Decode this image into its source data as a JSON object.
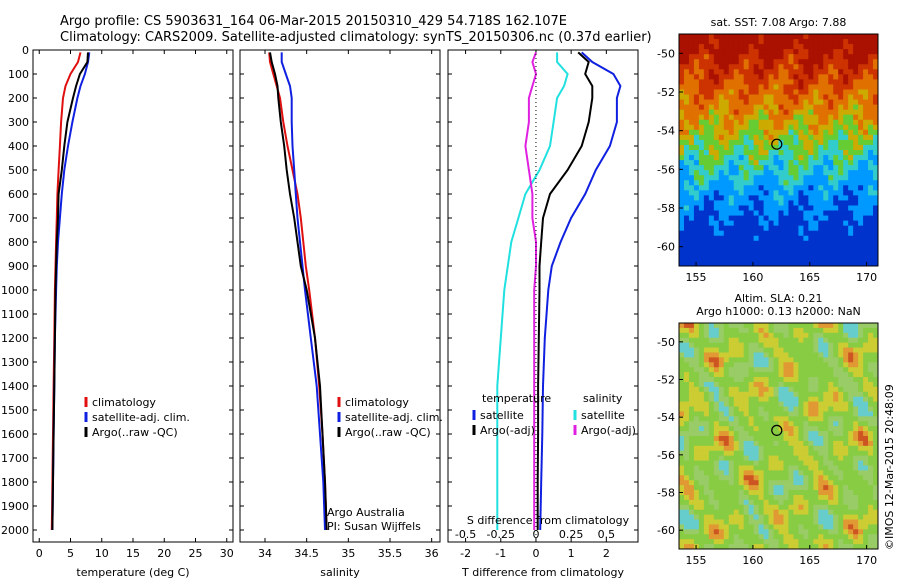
{
  "header": {
    "line1": "Argo profile: CS 5903631_164 06-Mar-2015 20150310_429 54.718S 162.107E",
    "line2": "Climatology: CARS2009. Satellite-adjusted climatology: synTS_20150306.nc (0.37d earlier)"
  },
  "colors": {
    "climatology": "#e01010",
    "satellite": "#1020e0",
    "argo": "#000000",
    "cyan": "#20e0e0",
    "magenta": "#e020e0"
  },
  "chart_data": [
    {
      "type": "line",
      "panel": "temperature",
      "xlabel": "temperature (deg C)",
      "ylabel": "",
      "xlim": [
        -1,
        31
      ],
      "ylim": [
        2050,
        0
      ],
      "xticks": [
        "0",
        "5",
        "10",
        "15",
        "20",
        "25",
        "30"
      ],
      "xtick_values": [
        0,
        5,
        10,
        15,
        20,
        25,
        30
      ],
      "yticks": [
        "0",
        "100",
        "200",
        "300",
        "400",
        "500",
        "600",
        "700",
        "800",
        "900",
        "1000",
        "1100",
        "1200",
        "1300",
        "1400",
        "1500",
        "1600",
        "1700",
        "1800",
        "1900",
        "2000"
      ],
      "legend": [
        "climatology",
        "satellite-adj. clim.",
        "Argo(..raw -QC)"
      ],
      "series": [
        {
          "name": "climatology",
          "depth": [
            10,
            50,
            100,
            150,
            200,
            300,
            400,
            500,
            600,
            700,
            800,
            900,
            1000,
            1200,
            1400,
            1600,
            1800,
            2000
          ],
          "values": [
            6.6,
            6.2,
            5.0,
            4.2,
            3.8,
            3.5,
            3.3,
            3.1,
            2.9,
            2.8,
            2.7,
            2.6,
            2.5,
            2.4,
            2.3,
            2.2,
            2.1,
            2.0
          ]
        },
        {
          "name": "satellite-adj. clim.",
          "depth": [
            10,
            50,
            100,
            150,
            200,
            300,
            400,
            500,
            600,
            700,
            800,
            900,
            1000,
            1200,
            1400,
            1600,
            1800,
            2000
          ],
          "values": [
            8.0,
            7.8,
            7.3,
            6.6,
            6.1,
            5.3,
            4.6,
            4.0,
            3.6,
            3.3,
            3.0,
            2.8,
            2.7,
            2.5,
            2.4,
            2.3,
            2.2,
            2.1
          ]
        },
        {
          "name": "Argo(..raw -QC)",
          "depth": [
            10,
            50,
            100,
            150,
            200,
            300,
            400,
            500,
            600,
            700,
            800,
            900,
            1000,
            1200,
            1400,
            1600,
            1800,
            2000
          ],
          "values": [
            7.8,
            7.7,
            6.5,
            5.9,
            5.4,
            4.5,
            4.0,
            3.6,
            3.1,
            3.0,
            2.8,
            2.7,
            2.6,
            2.5,
            2.4,
            2.3,
            2.2,
            2.1
          ]
        }
      ]
    },
    {
      "type": "line",
      "panel": "salinity",
      "xlabel": "salinity",
      "ylabel": "",
      "xlim": [
        33.7,
        36.1
      ],
      "ylim": [
        2050,
        0
      ],
      "xticks": [
        "34",
        "34.5",
        "35",
        "35.5",
        "36"
      ],
      "xtick_values": [
        34,
        34.5,
        35,
        35.5,
        36
      ],
      "legend": [
        "climatology",
        "satellite-adj. clim.",
        "Argo(..raw -QC)"
      ],
      "annotations": [
        "Argo Australia",
        "PI: Susan Wijffels"
      ],
      "series": [
        {
          "name": "climatology",
          "depth": [
            10,
            50,
            100,
            150,
            200,
            300,
            400,
            500,
            600,
            700,
            800,
            900,
            1000,
            1200,
            1400,
            1600,
            1800,
            2000
          ],
          "values": [
            34.05,
            34.06,
            34.1,
            34.14,
            34.18,
            34.22,
            34.27,
            34.33,
            34.39,
            34.43,
            34.46,
            34.49,
            34.53,
            34.6,
            34.65,
            34.69,
            34.72,
            34.74
          ]
        },
        {
          "name": "satellite-adj. clim.",
          "depth": [
            10,
            50,
            100,
            150,
            200,
            300,
            400,
            500,
            600,
            700,
            800,
            900,
            1000,
            1200,
            1400,
            1600,
            1800,
            2000
          ],
          "values": [
            34.2,
            34.2,
            34.25,
            34.3,
            34.32,
            34.32,
            34.33,
            34.35,
            34.37,
            34.39,
            34.42,
            34.45,
            34.48,
            34.55,
            34.62,
            34.66,
            34.7,
            34.72
          ]
        },
        {
          "name": "Argo(..raw -QC)",
          "depth": [
            10,
            50,
            100,
            150,
            200,
            300,
            400,
            500,
            600,
            700,
            800,
            900,
            1000,
            1200,
            1400,
            1600,
            1800,
            2000
          ],
          "values": [
            34.06,
            34.08,
            34.12,
            34.15,
            34.16,
            34.19,
            34.23,
            34.26,
            34.3,
            34.35,
            34.39,
            34.43,
            34.5,
            34.6,
            34.66,
            34.69,
            34.72,
            34.74
          ]
        }
      ]
    },
    {
      "type": "line",
      "panel": "difference",
      "xlabel": "T difference from climatology",
      "xlabel_top": "S difference from climatology",
      "xlim": [
        -2.5,
        2.9
      ],
      "ylim": [
        2050,
        0
      ],
      "xticks": [
        "-2",
        "-1",
        "0",
        "1",
        "2"
      ],
      "xtick_values": [
        -2,
        -1,
        0,
        1,
        2
      ],
      "sticks": [
        "-0.5",
        "-0.25",
        "0",
        "0.25",
        "0.5"
      ],
      "stick_positions": [
        -2,
        -1,
        0,
        1,
        2
      ],
      "legend_headers": [
        "temperature",
        "salinity"
      ],
      "legend": [
        "satellite",
        "Argo(-adj)",
        "satellite",
        "Argo(-adj)"
      ],
      "series": [
        {
          "name": "satellite",
          "depth": [
            10,
            50,
            100,
            150,
            200,
            300,
            400,
            500,
            600,
            700,
            800,
            900,
            1000,
            1200,
            1400,
            1600,
            1800,
            2000
          ],
          "values": [
            1.3,
            1.6,
            2.2,
            2.4,
            2.3,
            2.3,
            2.1,
            1.7,
            1.4,
            1.0,
            0.7,
            0.45,
            0.35,
            0.25,
            0.2,
            0.18,
            0.15,
            0.12
          ]
        },
        {
          "name": "Argo(-adj)",
          "depth": [
            10,
            50,
            100,
            150,
            200,
            300,
            400,
            500,
            600,
            700,
            800,
            900,
            1000,
            1200,
            1400,
            1600,
            1800,
            2000
          ],
          "values": [
            1.2,
            1.5,
            1.4,
            1.6,
            1.6,
            1.5,
            1.3,
            0.9,
            0.4,
            0.2,
            0.15,
            0.1,
            0.1,
            0.08,
            0.06,
            0.06,
            0.05,
            0.05
          ]
        },
        {
          "name": "satellite",
          "depth": [
            10,
            50,
            100,
            150,
            200,
            300,
            400,
            500,
            600,
            700,
            800,
            900,
            1000,
            1200,
            1400,
            1600,
            1800,
            2000
          ],
          "values": [
            0.6,
            0.6,
            0.9,
            0.8,
            0.6,
            0.5,
            0.4,
            0.1,
            -0.3,
            -0.5,
            -0.7,
            -0.8,
            -0.9,
            -1.0,
            -1.1,
            -1.1,
            -1.1,
            -1.1
          ]
        },
        {
          "name": "Argo(-adj)",
          "depth": [
            10,
            50,
            100,
            150,
            200,
            300,
            400,
            500,
            600,
            700,
            800,
            900,
            1000,
            1200,
            1400,
            1600,
            1800,
            2000
          ],
          "values": [
            0.0,
            -0.1,
            0.0,
            -0.1,
            -0.2,
            -0.2,
            -0.3,
            -0.2,
            -0.1,
            -0.1,
            0.0,
            0.0,
            -0.05,
            -0.05,
            -0.05,
            -0.05,
            -0.05,
            -0.05
          ]
        }
      ]
    },
    {
      "type": "heatmap",
      "panel": "sst-map",
      "title": "sat. SST: 7.08 Argo: 7.88",
      "xlim": [
        153.5,
        171
      ],
      "ylim": [
        -61,
        -49
      ],
      "xticks": [
        "155",
        "160",
        "165",
        "170"
      ],
      "xtick_values": [
        155,
        160,
        165,
        170
      ],
      "yticks": [
        "-50",
        "-52",
        "-54",
        "-56",
        "-58",
        "-60"
      ],
      "ytick_values": [
        -50,
        -52,
        -54,
        -56,
        -58,
        -60
      ],
      "marker": {
        "lon": 162.1,
        "lat": -54.7
      }
    },
    {
      "type": "heatmap",
      "panel": "sla-map",
      "title": "Altim. SLA: 0.21",
      "subtitle": "Argo h1000: 0.13 h2000: NaN",
      "xlim": [
        153.5,
        171
      ],
      "ylim": [
        -61,
        -49
      ],
      "xticks": [
        "155",
        "160",
        "165",
        "170"
      ],
      "xtick_values": [
        155,
        160,
        165,
        170
      ],
      "yticks": [
        "-50",
        "-52",
        "-54",
        "-56",
        "-58",
        "-60"
      ],
      "ytick_values": [
        -50,
        -52,
        -54,
        -56,
        -58,
        -60
      ],
      "marker": {
        "lon": 162.1,
        "lat": -54.7
      }
    }
  ],
  "credit": "©IMOS 12-Mar-2015 20:48:09"
}
